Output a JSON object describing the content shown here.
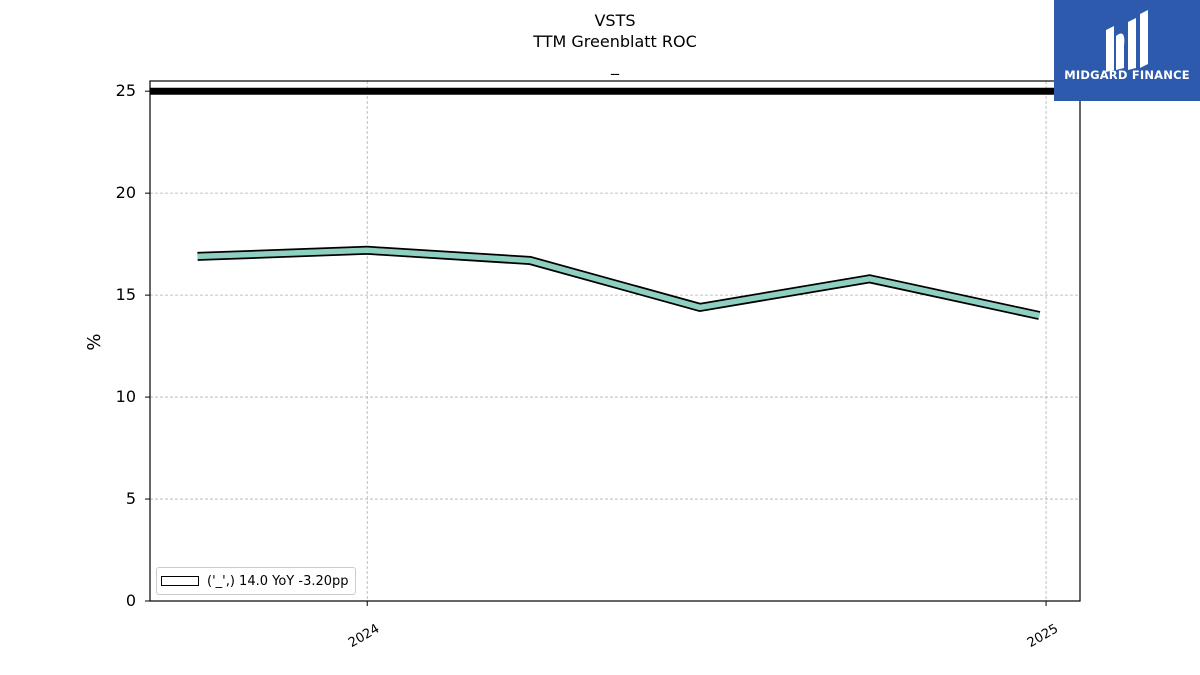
{
  "chart_data": {
    "type": "line",
    "title": "VSTS",
    "subtitle": "TTM Greenblatt ROC",
    "subtitle2": "_",
    "ylabel": "%",
    "ylim": [
      0,
      25.5
    ],
    "yticks": [
      0,
      5,
      10,
      15,
      20,
      25
    ],
    "xticks": [
      {
        "label": "2024",
        "x": 2024.0
      },
      {
        "label": "2025",
        "x": 2025.0
      }
    ],
    "xlim": [
      2023.68,
      2025.05
    ],
    "series": [
      {
        "name": "('_',) 14.0 YoY -3.20pp",
        "color": "#8dcfc0",
        "x": [
          2023.75,
          2024.0,
          2024.24,
          2024.49,
          2024.74,
          2024.99
        ],
        "values": [
          16.9,
          17.2,
          16.7,
          14.4,
          15.8,
          14.0
        ]
      }
    ],
    "reference_line": {
      "value": 25,
      "color": "#000000"
    },
    "grid": true,
    "legend_position": "lower-left"
  },
  "logo": {
    "text": "MIDGARD FINANCE",
    "bg_color": "#2d5aac"
  }
}
